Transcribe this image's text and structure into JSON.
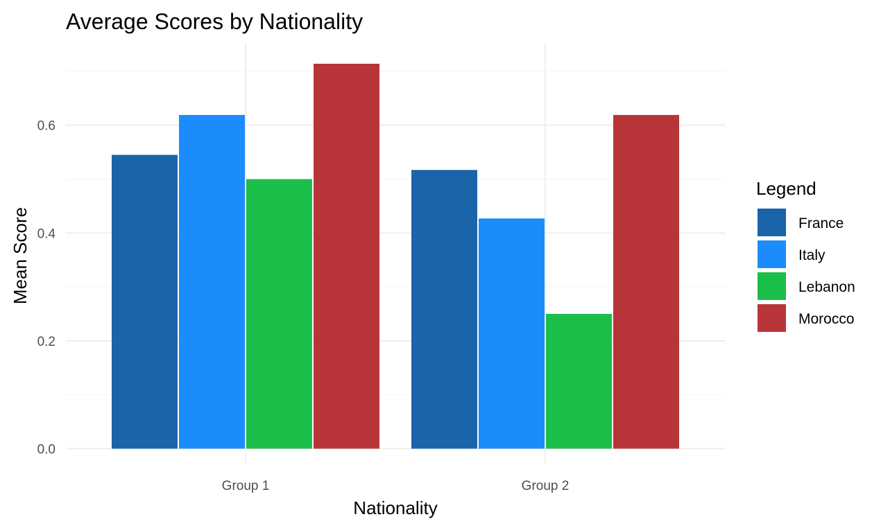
{
  "chart_data": {
    "type": "bar",
    "title": "Average Scores by Nationality",
    "xlabel": "Nationality",
    "ylabel": "Mean Score",
    "categories": [
      "Group 1",
      "Group 2"
    ],
    "series": [
      {
        "name": "France",
        "color": "#1a64aa",
        "values": [
          0.545,
          0.517
        ]
      },
      {
        "name": "Italy",
        "color": "#1c8cfd",
        "values": [
          0.619,
          0.427
        ]
      },
      {
        "name": "Lebanon",
        "color": "#1cbe4a",
        "values": [
          0.5,
          0.25
        ]
      },
      {
        "name": "Morocco",
        "color": "#b73538",
        "values": [
          0.714,
          0.619
        ]
      }
    ],
    "ylim": [
      0,
      0.73
    ],
    "yticks": [
      0.0,
      0.2,
      0.4,
      0.6
    ],
    "ytick_labels": [
      "0.0",
      "0.2",
      "0.4",
      "0.6"
    ],
    "grid": true,
    "legend": {
      "title": "Legend",
      "position": "right"
    }
  }
}
